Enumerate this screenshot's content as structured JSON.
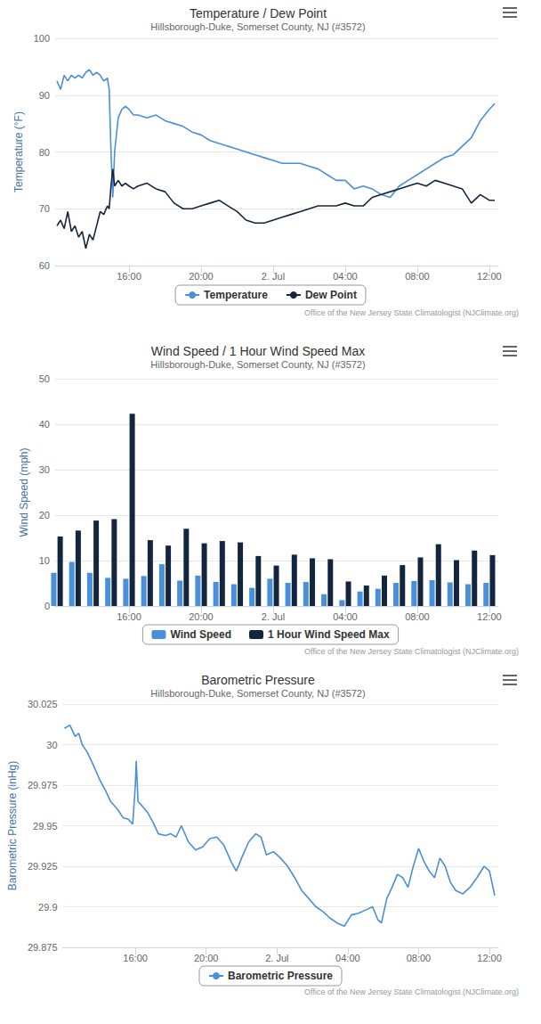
{
  "chart_data": [
    {
      "type": "line",
      "title": "Temperature / Dew Point",
      "subtitle": "Hillsborough-Duke, Somerset County, NJ (#3572)",
      "credit": "Office of the New Jersey State Climatologist (NJClimate.org)",
      "ylabel": "Temperature (°F)",
      "x": [
        12.0,
        12.2,
        12.4,
        12.6,
        12.8,
        13.0,
        13.2,
        13.4,
        13.6,
        13.8,
        14.0,
        14.2,
        14.4,
        14.6,
        14.8,
        14.9,
        15.0,
        15.1,
        15.2,
        15.4,
        15.6,
        15.8,
        16.0,
        16.25,
        16.5,
        17,
        17.5,
        18,
        18.5,
        19,
        19.5,
        20,
        20.5,
        21,
        21.5,
        22,
        22.5,
        23,
        23.5,
        24,
        24.5,
        25,
        25.5,
        26,
        26.5,
        27,
        27.5,
        28,
        28.5,
        29,
        29.5,
        30,
        30.5,
        31,
        31.5,
        32,
        32.5,
        33,
        33.5,
        34,
        34.5,
        35,
        35.5,
        36,
        36.3
      ],
      "series": [
        {
          "name": "Temperature",
          "color": "#4a8fd9",
          "values": [
            92.5,
            91,
            93.5,
            92.5,
            93.5,
            93,
            93.5,
            93,
            94,
            94.5,
            93.5,
            94,
            93.5,
            92.5,
            93,
            91,
            80,
            72,
            80,
            86,
            87.5,
            88,
            87.5,
            86.5,
            86.5,
            86,
            86.5,
            85.5,
            85,
            84.5,
            83.5,
            83,
            82,
            81.5,
            81,
            80.5,
            80,
            79.5,
            79,
            78.5,
            78,
            78,
            78,
            77.5,
            77,
            76,
            75,
            75,
            73.5,
            74,
            73.5,
            72.5,
            72,
            74,
            75,
            76,
            77,
            78,
            79,
            79.5,
            81,
            82.5,
            85.5,
            87.5,
            88.5
          ]
        },
        {
          "name": "Dew Point",
          "color": "#13263d",
          "values": [
            67,
            68,
            66.5,
            69.5,
            66,
            67,
            65,
            66,
            63,
            65.5,
            64.5,
            67,
            69.5,
            69,
            70.5,
            70,
            74,
            77,
            74,
            75,
            74,
            74.5,
            74,
            73.5,
            74,
            74.5,
            73.5,
            73,
            71,
            70,
            70,
            70.5,
            71,
            71.5,
            70.5,
            69.5,
            68,
            67.5,
            67.5,
            68,
            68.5,
            69,
            69.5,
            70,
            70.5,
            70.5,
            70.5,
            71,
            70.5,
            70.5,
            72,
            72.5,
            73,
            73.5,
            74,
            74.5,
            74,
            75,
            74.5,
            74,
            73.5,
            71,
            72.5,
            71.5,
            71.5
          ]
        }
      ],
      "xlim": [
        11.9,
        36.5
      ],
      "xticks": [
        {
          "value": 16,
          "label": "16:00"
        },
        {
          "value": 20,
          "label": "20:00"
        },
        {
          "value": 24,
          "label": "2. Jul"
        },
        {
          "value": 28,
          "label": "04:00"
        },
        {
          "value": 32,
          "label": "08:00"
        },
        {
          "value": 36,
          "label": "12:00"
        }
      ],
      "ylim": [
        60,
        100
      ],
      "yticks": [
        60,
        70,
        80,
        90,
        100
      ],
      "grid": true,
      "legend": "bottom"
    },
    {
      "type": "bar",
      "title": "Wind Speed / 1 Hour Wind Speed Max",
      "subtitle": "Hillsborough-Duke, Somerset County, NJ (#3572)",
      "credit": "Office of the New Jersey State Climatologist (NJClimate.org)",
      "ylabel": "Wind Speed (mph)",
      "x": [
        12,
        13,
        14,
        15,
        16,
        17,
        18,
        19,
        20,
        21,
        22,
        23,
        24,
        25,
        26,
        27,
        28,
        29,
        30,
        31,
        32,
        33,
        34,
        35,
        36
      ],
      "series": [
        {
          "name": "Wind Speed",
          "color": "#4a8fd9",
          "values": [
            7.3,
            9.7,
            7.3,
            6.2,
            6.0,
            6.6,
            9.2,
            5.6,
            6.7,
            5.3,
            4.8,
            4.0,
            6.0,
            5.1,
            5.3,
            2.6,
            1.3,
            3.2,
            3.8,
            5.1,
            5.5,
            5.7,
            5.2,
            4.8,
            5.1
          ]
        },
        {
          "name": "1 Hour Wind Speed Max",
          "color": "#13263d",
          "values": [
            15.3,
            16.6,
            18.8,
            19.1,
            42.3,
            14.5,
            13.3,
            17.0,
            13.8,
            14.3,
            14.0,
            11.0,
            8.9,
            11.3,
            10.5,
            10.3,
            5.4,
            4.5,
            6.7,
            9.0,
            10.7,
            13.6,
            10.1,
            12.2,
            11.2
          ]
        }
      ],
      "xlim": [
        11.9,
        36.5
      ],
      "xticks": [
        {
          "value": 16,
          "label": "16:00"
        },
        {
          "value": 20,
          "label": "20:00"
        },
        {
          "value": 24,
          "label": "2. Jul"
        },
        {
          "value": 28,
          "label": "04:00"
        },
        {
          "value": 32,
          "label": "08:00"
        },
        {
          "value": 36,
          "label": "12:00"
        }
      ],
      "ylim": [
        0,
        50
      ],
      "yticks": [
        0,
        10,
        20,
        30,
        40,
        50
      ],
      "grid": true,
      "legend": "bottom"
    },
    {
      "type": "line",
      "title": "Barometric Pressure",
      "subtitle": "Hillsborough-Duke, Somerset County, NJ (#3572)",
      "credit": "Office of the New Jersey State Climatologist (NJClimate.org)",
      "ylabel": "Barometric Pressure (inHg)",
      "x": [
        12.0,
        12.3,
        12.6,
        12.8,
        13.0,
        13.3,
        13.6,
        14.0,
        14.3,
        14.6,
        15.0,
        15.3,
        15.6,
        15.85,
        16.0,
        16.05,
        16.15,
        16.4,
        16.7,
        17.0,
        17.3,
        17.7,
        18.0,
        18.3,
        18.6,
        19.0,
        19.4,
        19.8,
        20.2,
        20.6,
        21.0,
        21.4,
        21.7,
        22.0,
        22.4,
        22.8,
        23.1,
        23.4,
        23.8,
        24.2,
        24.6,
        25.0,
        25.4,
        25.8,
        26.2,
        26.6,
        27.0,
        27.4,
        27.8,
        28.2,
        28.6,
        29.0,
        29.4,
        29.7,
        29.9,
        30.2,
        30.5,
        30.8,
        31.1,
        31.4,
        31.7,
        32.0,
        32.3,
        32.6,
        32.9,
        33.2,
        33.5,
        33.8,
        34.1,
        34.5,
        34.9,
        35.3,
        35.7,
        36.0,
        36.3
      ],
      "series": [
        {
          "name": "Barometric Pressure",
          "color": "#4a8fd9",
          "values": [
            30.01,
            30.012,
            30.005,
            30.007,
            30.0,
            29.995,
            29.988,
            29.978,
            29.972,
            29.965,
            29.96,
            29.955,
            29.954,
            29.951,
            29.975,
            29.99,
            29.965,
            29.962,
            29.958,
            29.952,
            29.945,
            29.944,
            29.945,
            29.943,
            29.95,
            29.94,
            29.935,
            29.937,
            29.942,
            29.943,
            29.938,
            29.928,
            29.922,
            29.93,
            29.94,
            29.945,
            29.943,
            29.932,
            29.934,
            29.93,
            29.925,
            29.918,
            29.91,
            29.905,
            29.9,
            29.897,
            29.893,
            29.89,
            29.888,
            29.895,
            29.896,
            29.898,
            29.9,
            29.892,
            29.89,
            29.905,
            29.912,
            29.92,
            29.918,
            29.912,
            29.925,
            29.936,
            29.928,
            29.922,
            29.918,
            29.93,
            29.925,
            29.915,
            29.91,
            29.908,
            29.912,
            29.918,
            29.925,
            29.922,
            29.907
          ]
        }
      ],
      "xlim": [
        11.9,
        36.5
      ],
      "xticks": [
        {
          "value": 16,
          "label": "16:00"
        },
        {
          "value": 20,
          "label": "20:00"
        },
        {
          "value": 24,
          "label": "2. Jul"
        },
        {
          "value": 28,
          "label": "04:00"
        },
        {
          "value": 32,
          "label": "08:00"
        },
        {
          "value": 36,
          "label": "12:00"
        }
      ],
      "ylim": [
        29.875,
        30.025
      ],
      "yticks": [
        29.875,
        29.9,
        29.925,
        29.95,
        29.975,
        30,
        30.025
      ],
      "grid": true,
      "legend": "bottom"
    }
  ]
}
